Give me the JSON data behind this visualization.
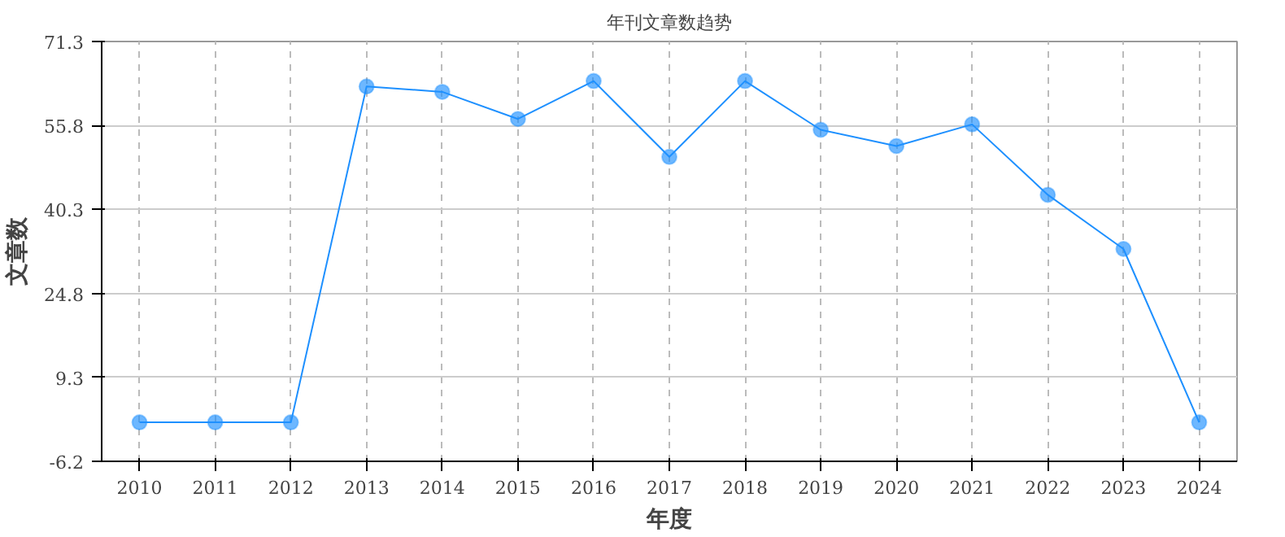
{
  "chart_data": {
    "type": "line",
    "title": "年刊文章数趋势",
    "xlabel": "年度",
    "ylabel": "文章数",
    "categories": [
      "2010",
      "2011",
      "2012",
      "2013",
      "2014",
      "2015",
      "2016",
      "2017",
      "2018",
      "2019",
      "2020",
      "2021",
      "2022",
      "2023",
      "2024"
    ],
    "series": [
      {
        "color": "#1e90ff",
        "values": [
          1,
          1,
          1,
          63,
          62,
          57,
          64,
          50,
          64,
          55,
          52,
          56,
          43,
          33,
          1
        ]
      }
    ],
    "ylim": [
      -6.2,
      71.3
    ],
    "yticks": [
      -6.2,
      9.3,
      24.8,
      40.3,
      55.8,
      71.3
    ],
    "grid": true,
    "marker": "circle",
    "line_style": "solid"
  }
}
